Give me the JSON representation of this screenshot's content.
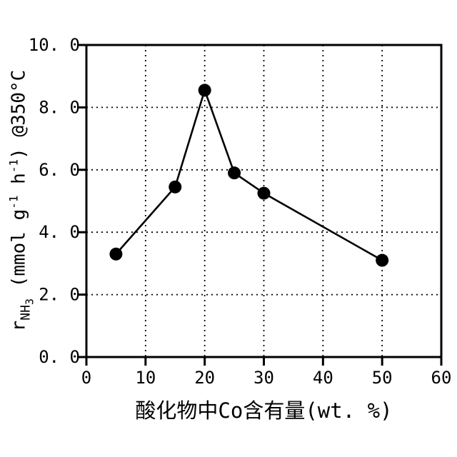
{
  "chart_data": {
    "type": "line",
    "series": [
      {
        "name": "rNH3 vs Co content",
        "x": [
          5,
          15,
          20,
          25,
          30,
          50
        ],
        "y": [
          3.3,
          5.45,
          8.55,
          5.9,
          5.25,
          3.1
        ]
      }
    ],
    "xlabel": "酸化物中Co含有量(wt. %)",
    "ylabel": "rNH3 (mmol g-1 h-1) @350°C",
    "ylabel_parts": [
      {
        "text": "r",
        "style": "base"
      },
      {
        "text": "NH",
        "style": "sub"
      },
      {
        "text": "3",
        "style": "subsub"
      },
      {
        "text": " (mmol g",
        "style": "base"
      },
      {
        "text": "-1",
        "style": "sup"
      },
      {
        "text": " h",
        "style": "base"
      },
      {
        "text": "-1",
        "style": "sup"
      },
      {
        "text": ") @350°C",
        "style": "base"
      }
    ],
    "xlim": [
      0,
      60
    ],
    "ylim": [
      0.0,
      10.0
    ],
    "x_ticks": [
      0,
      10,
      20,
      30,
      40,
      50,
      60
    ],
    "x_tick_labels": [
      "0",
      "10",
      "20",
      "30",
      "40",
      "50",
      "60"
    ],
    "y_ticks": [
      0,
      2,
      4,
      6,
      8,
      10
    ],
    "y_tick_labels": [
      "0. 0",
      "2. 0",
      "4. 0",
      "6. 0",
      "8. 0",
      "10. 0"
    ],
    "grid": {
      "style": "dotted",
      "x_lines": [
        10,
        20,
        30,
        40,
        50
      ],
      "y_lines": [
        2,
        4,
        6,
        8
      ]
    },
    "legend": "none",
    "marker": {
      "shape": "filled-circle",
      "radius": 9,
      "color": "#000000"
    },
    "line": {
      "color": "#000000",
      "width": 2.6
    },
    "axis_color": "#000000",
    "background_color": "#ffffff"
  }
}
